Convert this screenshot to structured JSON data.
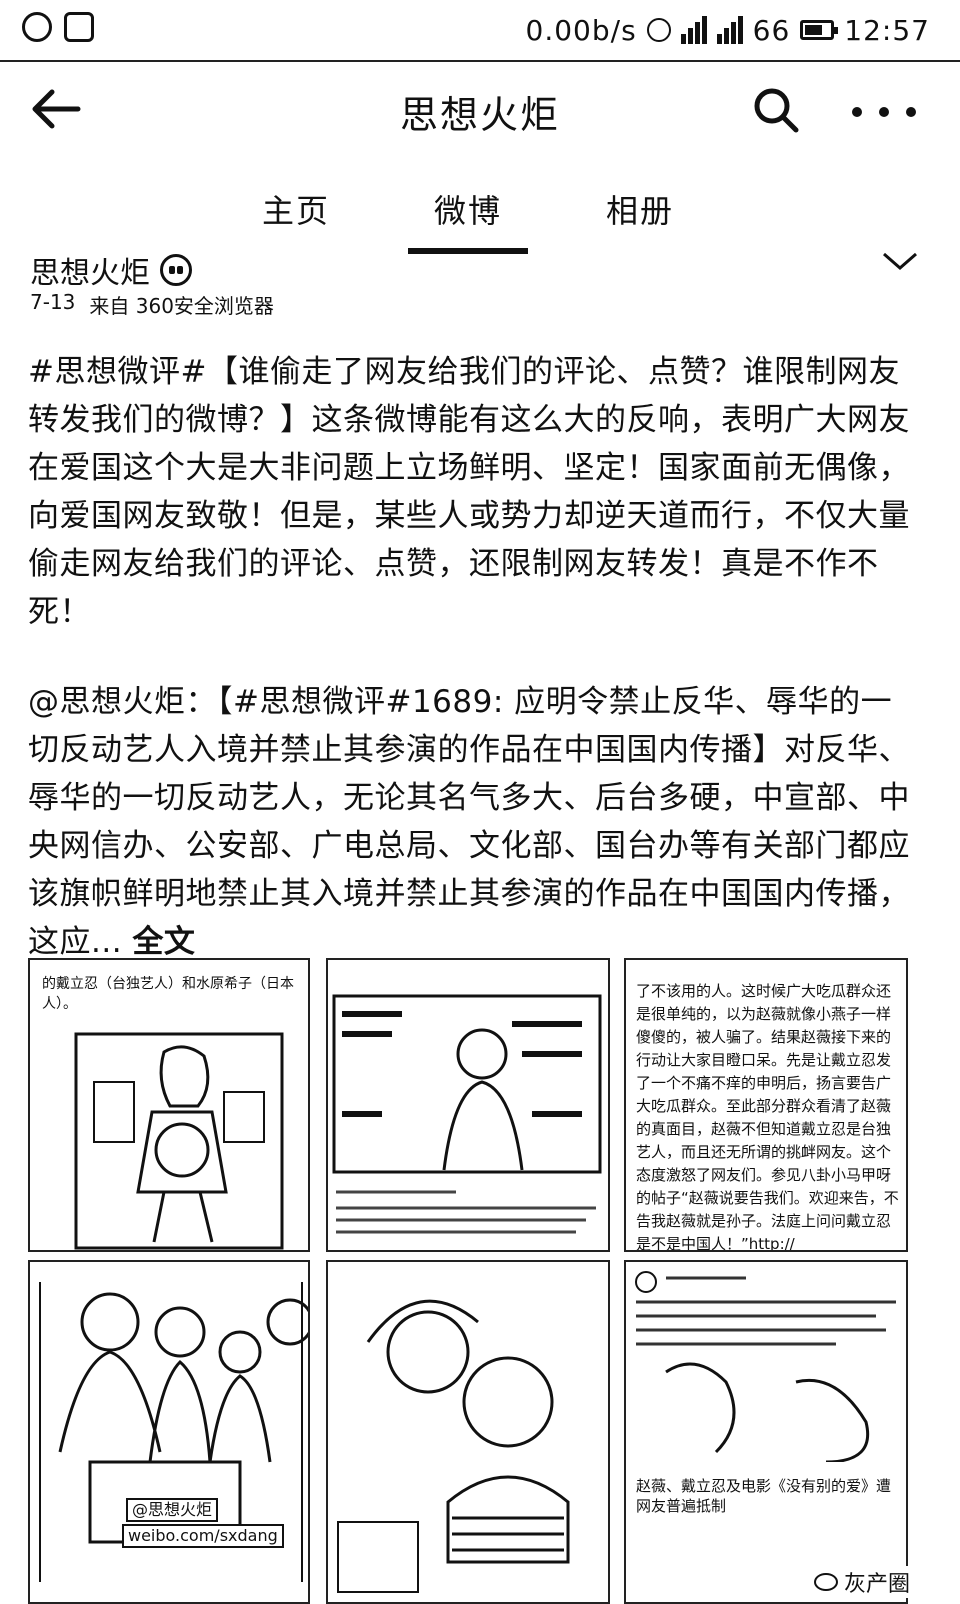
{
  "status_bar": {
    "speed": "0.00b/s",
    "network": "66",
    "time": "12:57",
    "battery_level": 0.7
  },
  "app_bar": {
    "title": "思想火炬",
    "back_icon": "arrow-left",
    "search_icon": "search",
    "more_icon": "more-horizontal"
  },
  "tabs": [
    {
      "label": "主页",
      "active": false
    },
    {
      "label": "微博",
      "active": true
    },
    {
      "label": "相册",
      "active": false
    }
  ],
  "post": {
    "author": "思想火炬",
    "date": "7-13",
    "source": "来自 360安全浏览器",
    "text": "#思想微评#【谁偷走了网友给我们的评论、点赞？谁限制网友转发我们的微博？】这条微博能有这么大的反响，表明广大网友在爱国这个大是大非问题上立场鲜明、坚定！国家面前无偶像，向爱国网友致敬！但是，某些人或势力却逆天道而行，不仅大量偷走网友给我们的评论、点赞，还限制网友转发！真是不作不死！",
    "repost": "@思想火炬：【#思想微评#1689: 应明令禁止反华、辱华的一切反动艺人入境并禁止其参演的作品在中国国内传播】对反华、辱华的一切反动艺人，无论其名气多大、后台多硬，中宣部、中央网信办、公安部、广电总局、文化部、国台办等有关部门都应该旗帜鲜明地禁止其入境并禁止其参演的作品在中国国内传播，这应...",
    "full_text_link": "全文"
  },
  "images": {
    "img1_caption": "的戴立忍（台独艺人）和水原希子（日本人）。",
    "img3_text": "了不该用的人。这时候广大吃瓜群众还是很单纯的，以为赵薇就像小燕子一样傻傻的，被人骗了。结果赵薇接下来的行动让大家目瞪口呆。先是让戴立忍发了一个不痛不痒的申明后，扬言要告广大吃瓜群众。至此部分群众看清了赵薇的真面目，赵薇不但知道戴立忍是台独艺人，而且还无所谓的挑衅网友。这个态度激怒了网友们。参见八卦小马甲呀的帖子“赵薇说要告我们。欢迎来告，不告我赵薇就是孙子。法庭上问问戴立忍是不是中国人！”http://",
    "img6_caption": "赵薇、戴立忍及电影《没有别的爱》遭网友普遍抵制",
    "weibo_watermark": "weibo.com/sxdang",
    "weibo_handle": "@思想火炬",
    "brand": "灰产圈"
  }
}
